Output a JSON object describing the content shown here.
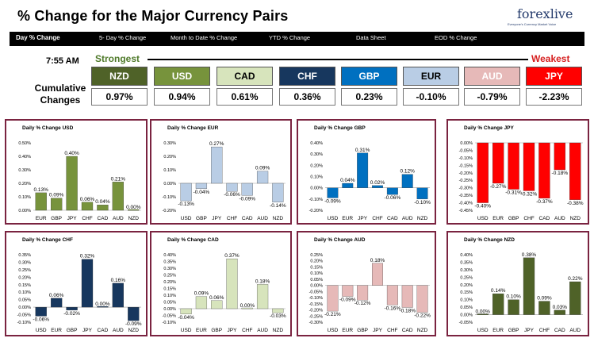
{
  "title": "% Change for the Major Currency Pairs",
  "logo": {
    "text": "forexlive",
    "tagline": "Everyone's Currency Market Voice"
  },
  "nav": [
    {
      "label": "Day % Change",
      "active": true
    },
    {
      "label": "5- Day % Change"
    },
    {
      "label": "Month to Date % Change"
    },
    {
      "label": "YTD % Change"
    },
    {
      "label": "Data Sheet"
    },
    {
      "label": "EOD % Change"
    }
  ],
  "time": "7:55 AM",
  "strongest_label": "Strongest",
  "weakest_label": "Weakest",
  "cumulative_label": "Cumulative Changes",
  "tiles": [
    {
      "code": "NZD",
      "value": "0.97%",
      "bg": "#4f6228",
      "fg": "#ffffff"
    },
    {
      "code": "USD",
      "value": "0.94%",
      "bg": "#77933c",
      "fg": "#ffffff"
    },
    {
      "code": "CAD",
      "value": "0.61%",
      "bg": "#d7e4bc",
      "fg": "#000000"
    },
    {
      "code": "CHF",
      "value": "0.36%",
      "bg": "#17375e",
      "fg": "#ffffff"
    },
    {
      "code": "GBP",
      "value": "0.23%",
      "bg": "#0070c0",
      "fg": "#ffffff"
    },
    {
      "code": "EUR",
      "value": "-0.10%",
      "bg": "#b9cde5",
      "fg": "#000000"
    },
    {
      "code": "AUD",
      "value": "-0.79%",
      "bg": "#e6b9b8",
      "fg": "#ffffff"
    },
    {
      "code": "JPY",
      "value": "-2.23%",
      "bg": "#ff0000",
      "fg": "#ffffff"
    }
  ],
  "chart_data": [
    {
      "type": "bar",
      "title": "Daily % Change USD",
      "color": "#77933c",
      "categories": [
        "EUR",
        "GBP",
        "JPY",
        "CHF",
        "CAD",
        "AUD",
        "NZD"
      ],
      "values": [
        0.13,
        0.09,
        0.4,
        0.06,
        0.04,
        0.21,
        0.0
      ],
      "labels": [
        "0.13%",
        "0.09%",
        "0.40%",
        "0.06%",
        "0.04%",
        "0.21%",
        "0.00%"
      ],
      "ylim": [
        0,
        0.5
      ],
      "ticks": [
        0,
        0.1,
        0.2,
        0.3,
        0.4,
        0.5
      ],
      "decimals": 2
    },
    {
      "type": "bar",
      "title": "Daily % Change EUR",
      "color": "#b9cde5",
      "categories": [
        "USD",
        "GBP",
        "JPY",
        "CHF",
        "CAD",
        "AUD",
        "NZD"
      ],
      "values": [
        -0.13,
        -0.04,
        0.27,
        -0.06,
        -0.09,
        0.09,
        -0.14
      ],
      "labels": [
        "-0.13%",
        "-0.04%",
        "0.27%",
        "-0.06%",
        "-0.09%",
        "0.09%",
        "-0.14%"
      ],
      "ylim": [
        -0.2,
        0.3
      ],
      "ticks": [
        -0.2,
        -0.1,
        0,
        0.1,
        0.2,
        0.3
      ],
      "decimals": 2
    },
    {
      "type": "bar",
      "title": "Daily % Change GBP",
      "color": "#0070c0",
      "categories": [
        "USD",
        "EUR",
        "JPY",
        "CHF",
        "CAD",
        "AUD",
        "NZD"
      ],
      "values": [
        -0.09,
        0.04,
        0.31,
        0.02,
        -0.06,
        0.12,
        -0.1
      ],
      "labels": [
        "-0.09%",
        "0.04%",
        "0.31%",
        "0.02%",
        "-0.06%",
        "0.12%",
        "-0.10%"
      ],
      "ylim": [
        -0.2,
        0.4
      ],
      "ticks": [
        -0.2,
        -0.1,
        0,
        0.1,
        0.2,
        0.3,
        0.4
      ],
      "decimals": 2
    },
    {
      "type": "bar",
      "title": "Daily % Change JPY",
      "color": "#ff0000",
      "categories": [
        "USD",
        "EUR",
        "GBP",
        "CHF",
        "CAD",
        "AUD",
        "NZD"
      ],
      "values": [
        -0.4,
        -0.27,
        -0.31,
        -0.32,
        -0.37,
        -0.18,
        -0.38
      ],
      "labels": [
        "-0.40%",
        "-0.27%",
        "-0.31%",
        "-0.32%",
        "-0.37%",
        "-0.18%",
        "-0.38%"
      ],
      "ylim": [
        -0.45,
        0
      ],
      "ticks": [
        -0.45,
        -0.4,
        -0.35,
        -0.3,
        -0.25,
        -0.2,
        -0.15,
        -0.1,
        -0.05,
        0
      ],
      "decimals": 2
    },
    {
      "type": "bar",
      "title": "Daily % Change CHF",
      "color": "#17375e",
      "categories": [
        "USD",
        "EUR",
        "GBP",
        "JPY",
        "CAD",
        "AUD",
        "NZD"
      ],
      "values": [
        -0.06,
        0.06,
        -0.02,
        0.32,
        0.0,
        0.16,
        -0.09
      ],
      "labels": [
        "-0.06%",
        "0.06%",
        "-0.02%",
        "0.32%",
        "0.00%",
        "0.16%",
        "-0.09%"
      ],
      "ylim": [
        -0.1,
        0.35
      ],
      "ticks": [
        -0.1,
        -0.05,
        0,
        0.05,
        0.1,
        0.15,
        0.2,
        0.25,
        0.3,
        0.35
      ],
      "decimals": 2
    },
    {
      "type": "bar",
      "title": "Daily % Change CAD",
      "color": "#d7e4bc",
      "categories": [
        "USD",
        "EUR",
        "GBP",
        "JPY",
        "CHF",
        "AUD",
        "NZD"
      ],
      "values": [
        -0.04,
        0.09,
        0.06,
        0.37,
        0.0,
        0.18,
        -0.03
      ],
      "labels": [
        "-0.04%",
        "0.09%",
        "0.06%",
        "0.37%",
        "0.00%",
        "0.18%",
        "-0.03%"
      ],
      "ylim": [
        -0.1,
        0.4
      ],
      "ticks": [
        -0.1,
        -0.05,
        0,
        0.05,
        0.1,
        0.15,
        0.2,
        0.25,
        0.3,
        0.35,
        0.4
      ],
      "decimals": 2
    },
    {
      "type": "bar",
      "title": "Daily % Change AUD",
      "color": "#e6b9b8",
      "categories": [
        "USD",
        "EUR",
        "GBP",
        "JPY",
        "CHF",
        "CAD",
        "NZD"
      ],
      "values": [
        -0.21,
        -0.09,
        -0.12,
        0.18,
        -0.16,
        -0.18,
        -0.22
      ],
      "labels": [
        "-0.21%",
        "-0.09%",
        "-0.12%",
        "0.18%",
        "-0.16%",
        "-0.18%",
        "-0.22%"
      ],
      "ylim": [
        -0.3,
        0.25
      ],
      "ticks": [
        -0.3,
        -0.25,
        -0.2,
        -0.15,
        -0.1,
        -0.05,
        0,
        0.05,
        0.1,
        0.15,
        0.2,
        0.25
      ],
      "decimals": 2
    },
    {
      "type": "bar",
      "title": "Daily % Change NZD",
      "color": "#4f6228",
      "categories": [
        "USD",
        "EUR",
        "GBP",
        "JPY",
        "CHF",
        "CAD",
        "AUD"
      ],
      "values": [
        0.0,
        0.14,
        0.1,
        0.38,
        0.09,
        0.03,
        0.22
      ],
      "labels": [
        "0.00%",
        "0.14%",
        "0.10%",
        "0.38%",
        "0.09%",
        "0.03%",
        "0.22%"
      ],
      "ylim": [
        -0.05,
        0.4
      ],
      "ticks": [
        -0.05,
        0,
        0.05,
        0.1,
        0.15,
        0.2,
        0.25,
        0.3,
        0.35,
        0.4
      ],
      "decimals": 2
    }
  ]
}
